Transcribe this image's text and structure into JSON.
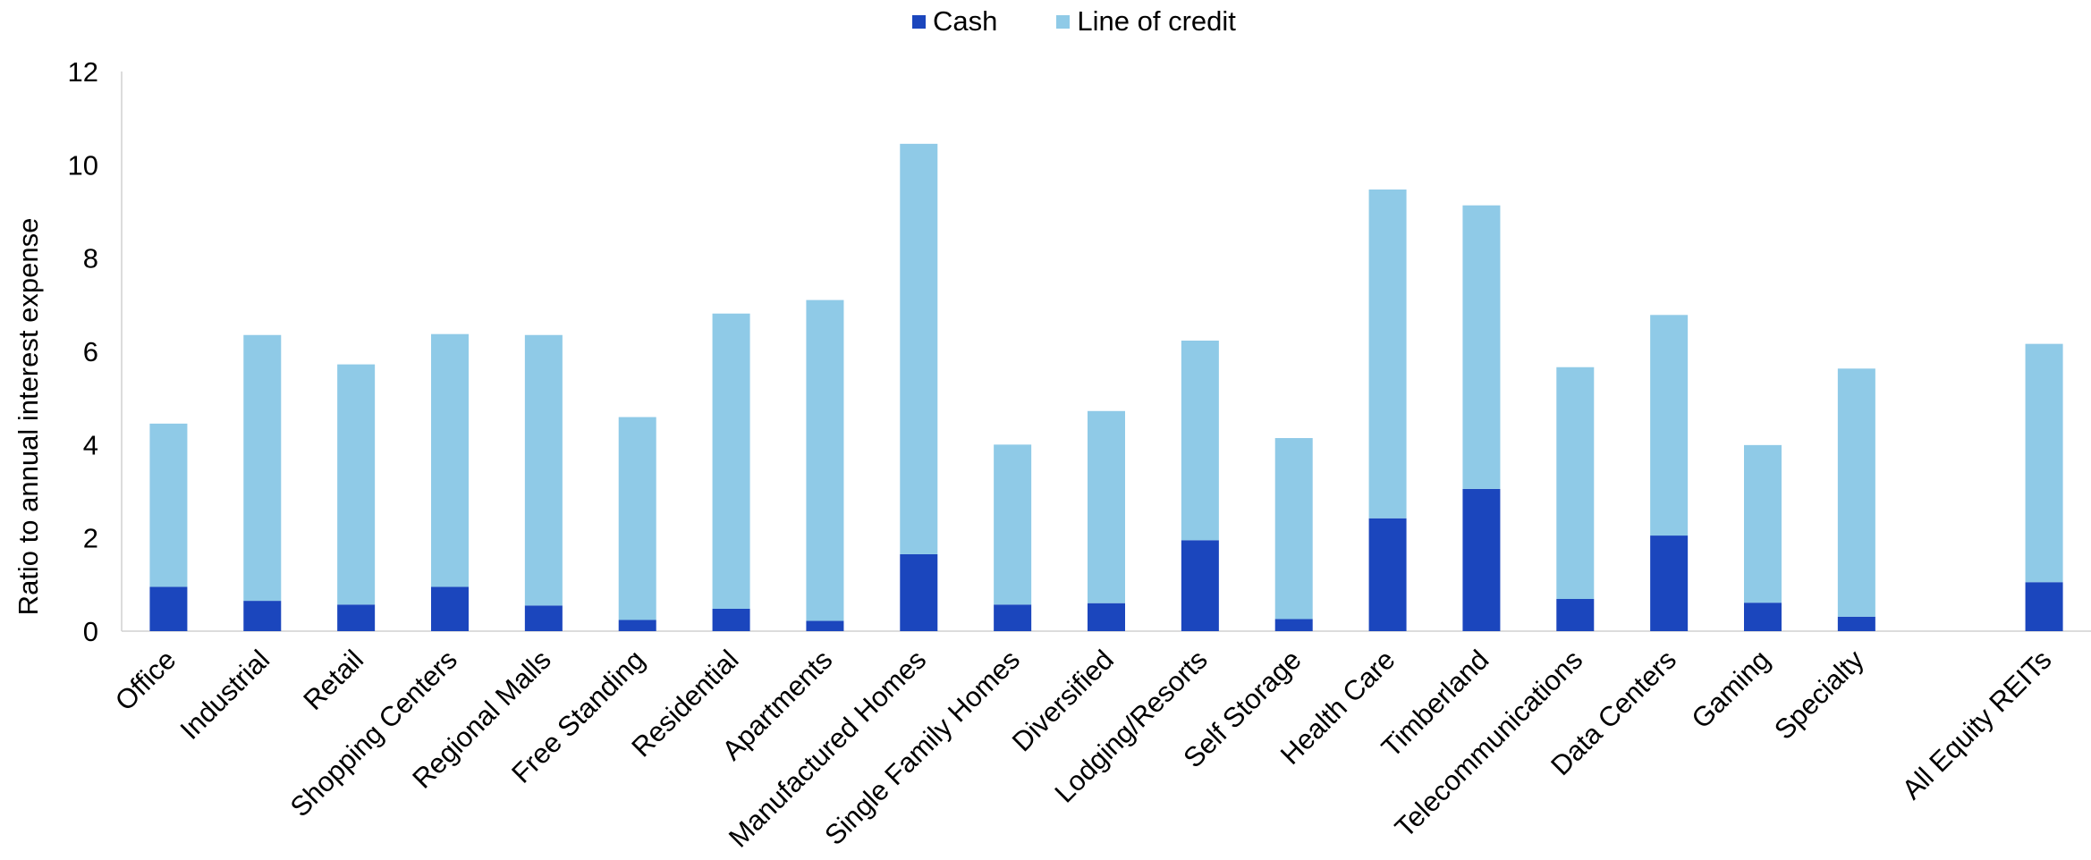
{
  "chart_data": {
    "type": "bar",
    "stacked": true,
    "title": "",
    "xlabel": "",
    "ylabel": "Ratio to annual interest expense",
    "ylim": [
      0,
      12
    ],
    "yticks": [
      0,
      2,
      4,
      6,
      8,
      10,
      12
    ],
    "grid": false,
    "legend_position": "top-center",
    "categories": [
      "Office",
      "Industrial",
      "Retail",
      "Shopping Centers",
      "Regional Malls",
      "Free Standing",
      "Residential",
      "Apartments",
      "Manufactured Homes",
      "Single Family Homes",
      "Diversified",
      "Lodging/Resorts",
      "Self Storage",
      "Health Care",
      "Timberland",
      "Telecommunications",
      "Data Centers",
      "Gaming",
      "Specialty",
      "",
      "All Equity REITs"
    ],
    "series": [
      {
        "name": "Cash",
        "color": "#1b46bd",
        "values": [
          0.95,
          0.65,
          0.57,
          0.95,
          0.55,
          0.24,
          0.48,
          0.22,
          1.65,
          0.57,
          0.6,
          1.95,
          0.26,
          2.42,
          3.05,
          0.69,
          2.05,
          0.61,
          0.31,
          null,
          1.05
        ]
      },
      {
        "name": "Line of credit",
        "color": "#8fcae7",
        "values": [
          3.5,
          5.7,
          5.15,
          5.42,
          5.8,
          4.35,
          6.33,
          6.88,
          8.8,
          3.43,
          4.12,
          4.28,
          3.88,
          7.05,
          6.08,
          4.97,
          4.73,
          3.38,
          5.32,
          null,
          5.11
        ]
      }
    ]
  }
}
